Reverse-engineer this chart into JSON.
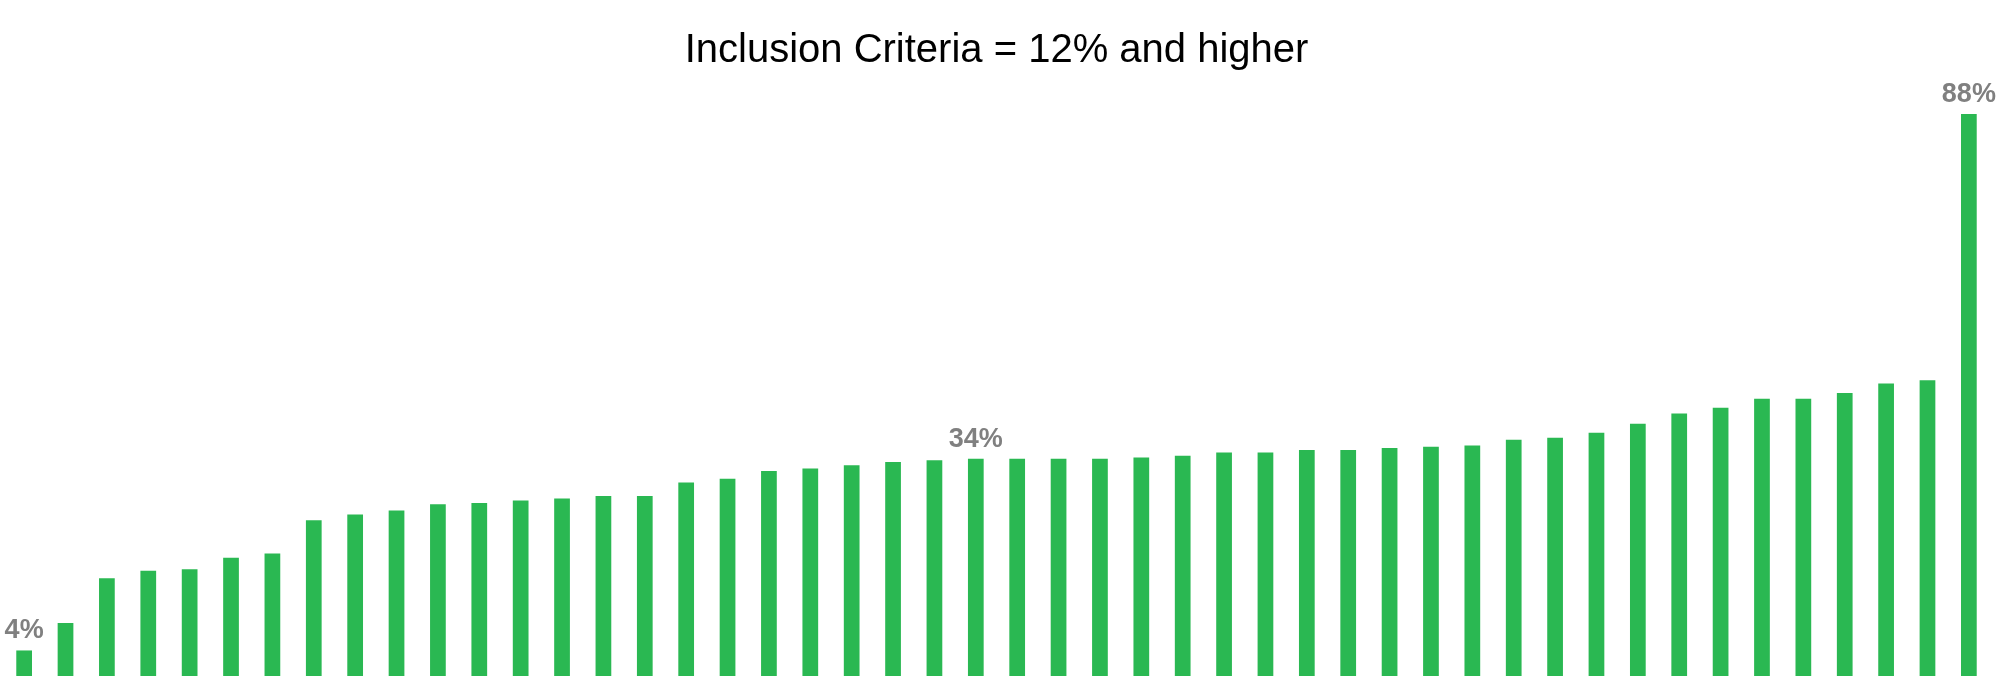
{
  "chart_data": {
    "type": "bar",
    "title": "Inclusion Criteria = 12% and higher",
    "categories": [
      null,
      null,
      null,
      null,
      null,
      null,
      null,
      null,
      null,
      null,
      null,
      null,
      null,
      null,
      null,
      null,
      null,
      null,
      null,
      null,
      null,
      null,
      null,
      null,
      null,
      null,
      null,
      null,
      null,
      null,
      null,
      null,
      null,
      null,
      null,
      null,
      null,
      null,
      null,
      null,
      null,
      null,
      null,
      null,
      null,
      null,
      null,
      null
    ],
    "values": [
      4,
      8.3,
      15.3,
      16.5,
      16.7,
      18.5,
      19.2,
      24.4,
      25.3,
      25.9,
      26.9,
      27.1,
      27.5,
      27.8,
      28.2,
      28.2,
      30.3,
      30.9,
      32.1,
      32.5,
      33.0,
      33.5,
      33.8,
      34,
      34,
      34,
      34,
      34.2,
      34.5,
      35.0,
      35.0,
      35.4,
      35.4,
      35.7,
      35.9,
      36.1,
      37.0,
      37.3,
      38.1,
      39.5,
      41.1,
      42.0,
      43.4,
      43.4,
      44.3,
      45.8,
      46.3,
      88
    ],
    "value_labels": [
      "4%",
      null,
      null,
      null,
      null,
      null,
      null,
      null,
      null,
      null,
      null,
      null,
      null,
      null,
      null,
      null,
      null,
      null,
      null,
      null,
      null,
      null,
      null,
      "34%",
      null,
      null,
      null,
      null,
      null,
      null,
      null,
      null,
      null,
      null,
      null,
      null,
      null,
      null,
      null,
      null,
      null,
      null,
      null,
      null,
      null,
      null,
      null,
      "88%"
    ],
    "color": "#2ab852",
    "tick_labels": false
  }
}
